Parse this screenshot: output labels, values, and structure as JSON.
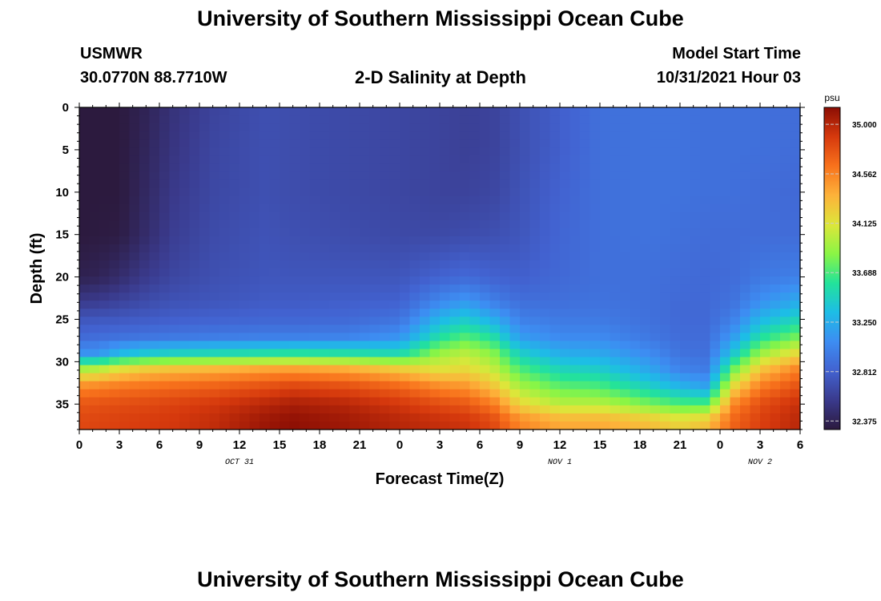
{
  "header": {
    "title": "University of Southern Mississippi Ocean Cube",
    "station_id": "USMWR",
    "station_coords": "30.0770N  88.7710W",
    "plot_title": "2-D Salinity at Depth",
    "model_start_label": "Model Start Time",
    "model_start_value": "10/31/2021 Hour 03"
  },
  "footer": {
    "title": "University of Southern Mississippi Ocean Cube"
  },
  "chart_data": {
    "type": "heatmap",
    "title": "2-D Salinity at Depth",
    "xlabel": "Forecast Time(Z)",
    "ylabel": "Depth (ft)",
    "xlim": [
      0,
      54
    ],
    "ylim": [
      38,
      0
    ],
    "x_ticks": [
      {
        "hour": 0,
        "label": "0"
      },
      {
        "hour": 3,
        "label": "3"
      },
      {
        "hour": 6,
        "label": "6"
      },
      {
        "hour": 9,
        "label": "9"
      },
      {
        "hour": 12,
        "label": "12"
      },
      {
        "hour": 15,
        "label": "15"
      },
      {
        "hour": 18,
        "label": "18"
      },
      {
        "hour": 21,
        "label": "21"
      },
      {
        "hour": 24,
        "label": "0"
      },
      {
        "hour": 27,
        "label": "3"
      },
      {
        "hour": 30,
        "label": "6"
      },
      {
        "hour": 33,
        "label": "9"
      },
      {
        "hour": 36,
        "label": "12"
      },
      {
        "hour": 39,
        "label": "15"
      },
      {
        "hour": 42,
        "label": "18"
      },
      {
        "hour": 45,
        "label": "21"
      },
      {
        "hour": 48,
        "label": "0"
      },
      {
        "hour": 51,
        "label": "3"
      },
      {
        "hour": 54,
        "label": "6"
      }
    ],
    "date_labels": [
      {
        "hour": 12,
        "label": "OCT 31"
      },
      {
        "hour": 36,
        "label": "NOV 1"
      },
      {
        "hour": 51,
        "label": "NOV 2"
      }
    ],
    "y_ticks": [
      0,
      5,
      10,
      15,
      20,
      25,
      30,
      35
    ],
    "colorbar": {
      "unit": "psu",
      "min": 32.3,
      "max": 35.15,
      "ticks": [
        "35.000",
        "34.562",
        "34.125",
        "33.688",
        "33.250",
        "32.812",
        "32.375"
      ],
      "colors": [
        "#2c1a3e",
        "#3a3a8c",
        "#4262d0",
        "#3d8df2",
        "#1dbde6",
        "#23e39a",
        "#8af545",
        "#dde63a",
        "#fdb23a",
        "#f8721c",
        "#d6390d",
        "#8c0e04"
      ]
    },
    "profiles": {
      "hours": [
        0,
        1.5,
        3,
        5,
        7,
        10,
        14,
        16,
        20,
        24,
        27,
        29,
        31,
        33,
        36,
        39,
        43,
        45,
        47,
        49,
        51,
        54
      ],
      "depths": [
        0,
        5,
        10,
        15,
        20,
        23,
        25,
        27,
        29,
        31,
        33,
        35,
        37,
        38
      ],
      "values": [
        [
          32.3,
          32.3,
          32.3,
          32.3,
          32.36,
          32.56,
          32.74,
          32.86,
          33.1,
          34.0,
          34.55,
          34.76,
          34.82,
          34.82
        ],
        [
          32.3,
          32.3,
          32.3,
          32.31,
          32.38,
          32.58,
          32.75,
          32.88,
          33.12,
          34.05,
          34.58,
          34.78,
          34.84,
          34.84
        ],
        [
          32.3,
          32.3,
          32.3,
          32.32,
          32.45,
          32.62,
          32.76,
          32.9,
          33.3,
          34.2,
          34.62,
          34.8,
          34.86,
          34.86
        ],
        [
          32.38,
          32.4,
          32.42,
          32.45,
          32.56,
          32.68,
          32.78,
          32.92,
          33.4,
          34.3,
          34.65,
          34.82,
          34.88,
          34.88
        ],
        [
          32.5,
          32.52,
          32.55,
          32.58,
          32.64,
          32.72,
          32.8,
          32.94,
          33.45,
          34.35,
          34.68,
          34.85,
          34.9,
          34.9
        ],
        [
          32.62,
          32.64,
          32.65,
          32.67,
          32.7,
          32.74,
          32.82,
          32.96,
          33.5,
          34.4,
          34.72,
          34.9,
          34.96,
          34.96
        ],
        [
          32.7,
          32.7,
          32.7,
          32.72,
          32.74,
          32.78,
          32.84,
          32.98,
          33.55,
          34.48,
          34.8,
          35.0,
          35.1,
          35.1
        ],
        [
          32.68,
          32.68,
          32.68,
          32.7,
          32.74,
          32.78,
          32.84,
          32.98,
          33.58,
          34.5,
          34.85,
          35.05,
          35.14,
          35.14
        ],
        [
          32.66,
          32.66,
          32.66,
          32.68,
          32.74,
          32.8,
          32.86,
          33.0,
          33.55,
          34.45,
          34.8,
          35.0,
          35.08,
          35.08
        ],
        [
          32.64,
          32.64,
          32.64,
          32.66,
          32.74,
          32.82,
          32.92,
          33.1,
          33.5,
          34.3,
          34.7,
          34.9,
          35.0,
          35.0
        ],
        [
          32.62,
          32.62,
          32.62,
          32.66,
          32.82,
          33.05,
          33.3,
          33.55,
          33.9,
          34.15,
          34.55,
          34.8,
          34.95,
          34.95
        ],
        [
          32.6,
          32.6,
          32.62,
          32.68,
          32.86,
          33.15,
          33.42,
          33.7,
          34.0,
          34.2,
          34.5,
          34.75,
          34.92,
          34.92
        ],
        [
          32.62,
          32.62,
          32.64,
          32.7,
          32.82,
          33.0,
          33.25,
          33.55,
          33.85,
          34.05,
          34.3,
          34.6,
          34.82,
          34.82
        ],
        [
          32.7,
          32.7,
          32.72,
          32.74,
          32.8,
          32.9,
          33.0,
          33.15,
          33.45,
          33.72,
          33.95,
          34.2,
          34.55,
          34.55
        ],
        [
          32.8,
          32.8,
          32.82,
          32.84,
          32.86,
          32.9,
          32.96,
          33.05,
          33.25,
          33.5,
          33.75,
          34.0,
          34.4,
          34.4
        ],
        [
          32.9,
          32.9,
          32.9,
          32.9,
          32.9,
          32.92,
          32.96,
          33.05,
          33.22,
          33.45,
          33.7,
          34.0,
          34.4,
          34.4
        ],
        [
          32.92,
          32.92,
          32.92,
          32.92,
          32.9,
          32.9,
          32.9,
          32.94,
          33.05,
          33.2,
          33.45,
          33.8,
          34.3,
          34.3
        ],
        [
          32.92,
          32.92,
          32.92,
          32.9,
          32.88,
          32.86,
          32.86,
          32.88,
          32.92,
          33.02,
          33.3,
          33.7,
          34.2,
          34.2
        ],
        [
          32.9,
          32.9,
          32.9,
          32.88,
          32.86,
          32.86,
          32.86,
          32.88,
          32.9,
          32.98,
          33.2,
          33.7,
          34.3,
          34.3
        ],
        [
          32.9,
          32.9,
          32.9,
          32.88,
          32.88,
          32.92,
          33.0,
          33.15,
          33.4,
          33.8,
          34.2,
          34.55,
          34.7,
          34.7
        ],
        [
          32.9,
          32.9,
          32.88,
          32.88,
          32.95,
          33.1,
          33.3,
          33.55,
          33.9,
          34.3,
          34.6,
          34.8,
          34.86,
          34.86
        ],
        [
          32.88,
          32.88,
          32.86,
          32.88,
          33.0,
          33.25,
          33.5,
          33.8,
          34.2,
          34.6,
          34.8,
          34.95,
          35.0,
          35.0
        ]
      ]
    }
  }
}
